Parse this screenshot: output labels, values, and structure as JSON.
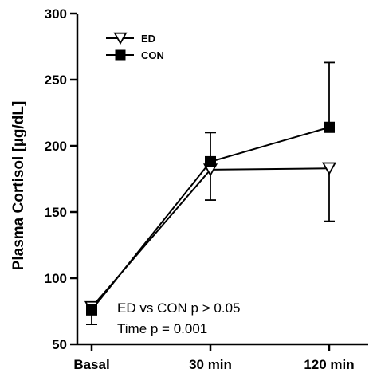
{
  "chart_data": {
    "type": "line",
    "categories": [
      "Basal",
      "30 min",
      "120 min"
    ],
    "ylabel": "Plasma Cortisol [µg/dL]",
    "xlabel": "",
    "title": "",
    "ylim": [
      50,
      300
    ],
    "yticks": [
      50,
      100,
      150,
      200,
      250,
      300
    ],
    "grid": false,
    "legend_position": "top-left",
    "series": [
      {
        "name": "ED",
        "marker": "open-down-triangle",
        "color": "#000000",
        "values": [
          78,
          182,
          183
        ],
        "error": [
          13,
          23,
          40
        ]
      },
      {
        "name": "CON",
        "marker": "filled-square",
        "color": "#000000",
        "values": [
          76,
          188,
          214
        ],
        "error": [
          6,
          22,
          49
        ]
      }
    ],
    "annotations": [
      "ED vs CON p > 0.05",
      "Time p = 0.001"
    ]
  }
}
